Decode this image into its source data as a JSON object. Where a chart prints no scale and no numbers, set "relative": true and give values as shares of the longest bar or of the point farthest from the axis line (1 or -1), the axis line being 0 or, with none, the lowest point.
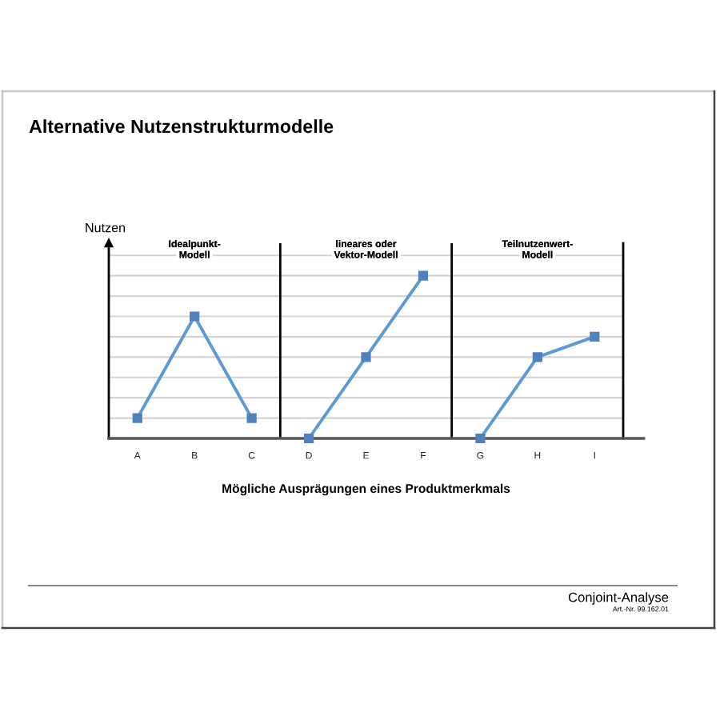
{
  "chart_data": {
    "type": "line",
    "title": "Alternative Nutzenstrukturmodelle",
    "xlabel": "Mögliche Ausprägungen eines Produktmerkmals",
    "ylabel": "Nutzen",
    "categories": [
      "A",
      "B",
      "C",
      "D",
      "E",
      "F",
      "G",
      "H",
      "I"
    ],
    "series": [
      {
        "color": "#5b9bd5",
        "values": [
          0.125,
          0.75,
          0.125,
          null,
          null,
          null,
          null,
          null,
          null
        ]
      },
      {
        "color": "#5b9bd5",
        "values": [
          null,
          null,
          null,
          0,
          0.5,
          1,
          null,
          null,
          null
        ]
      },
      {
        "color": "#5b9bd5",
        "values": [
          null,
          null,
          null,
          null,
          null,
          null,
          0,
          0.5,
          0.625
        ]
      }
    ],
    "relative": true,
    "grid": "y",
    "tick_labels": "x",
    "marker": "square",
    "line_style": "solid",
    "annotations": [
      "Idealpunkt-\nModell",
      "lineares oder\nVektor-Modell",
      "Teilnutzenwert-\nModell",
      "Conjoint-Analyse",
      "Art.-Nr. 99.162.01"
    ]
  }
}
